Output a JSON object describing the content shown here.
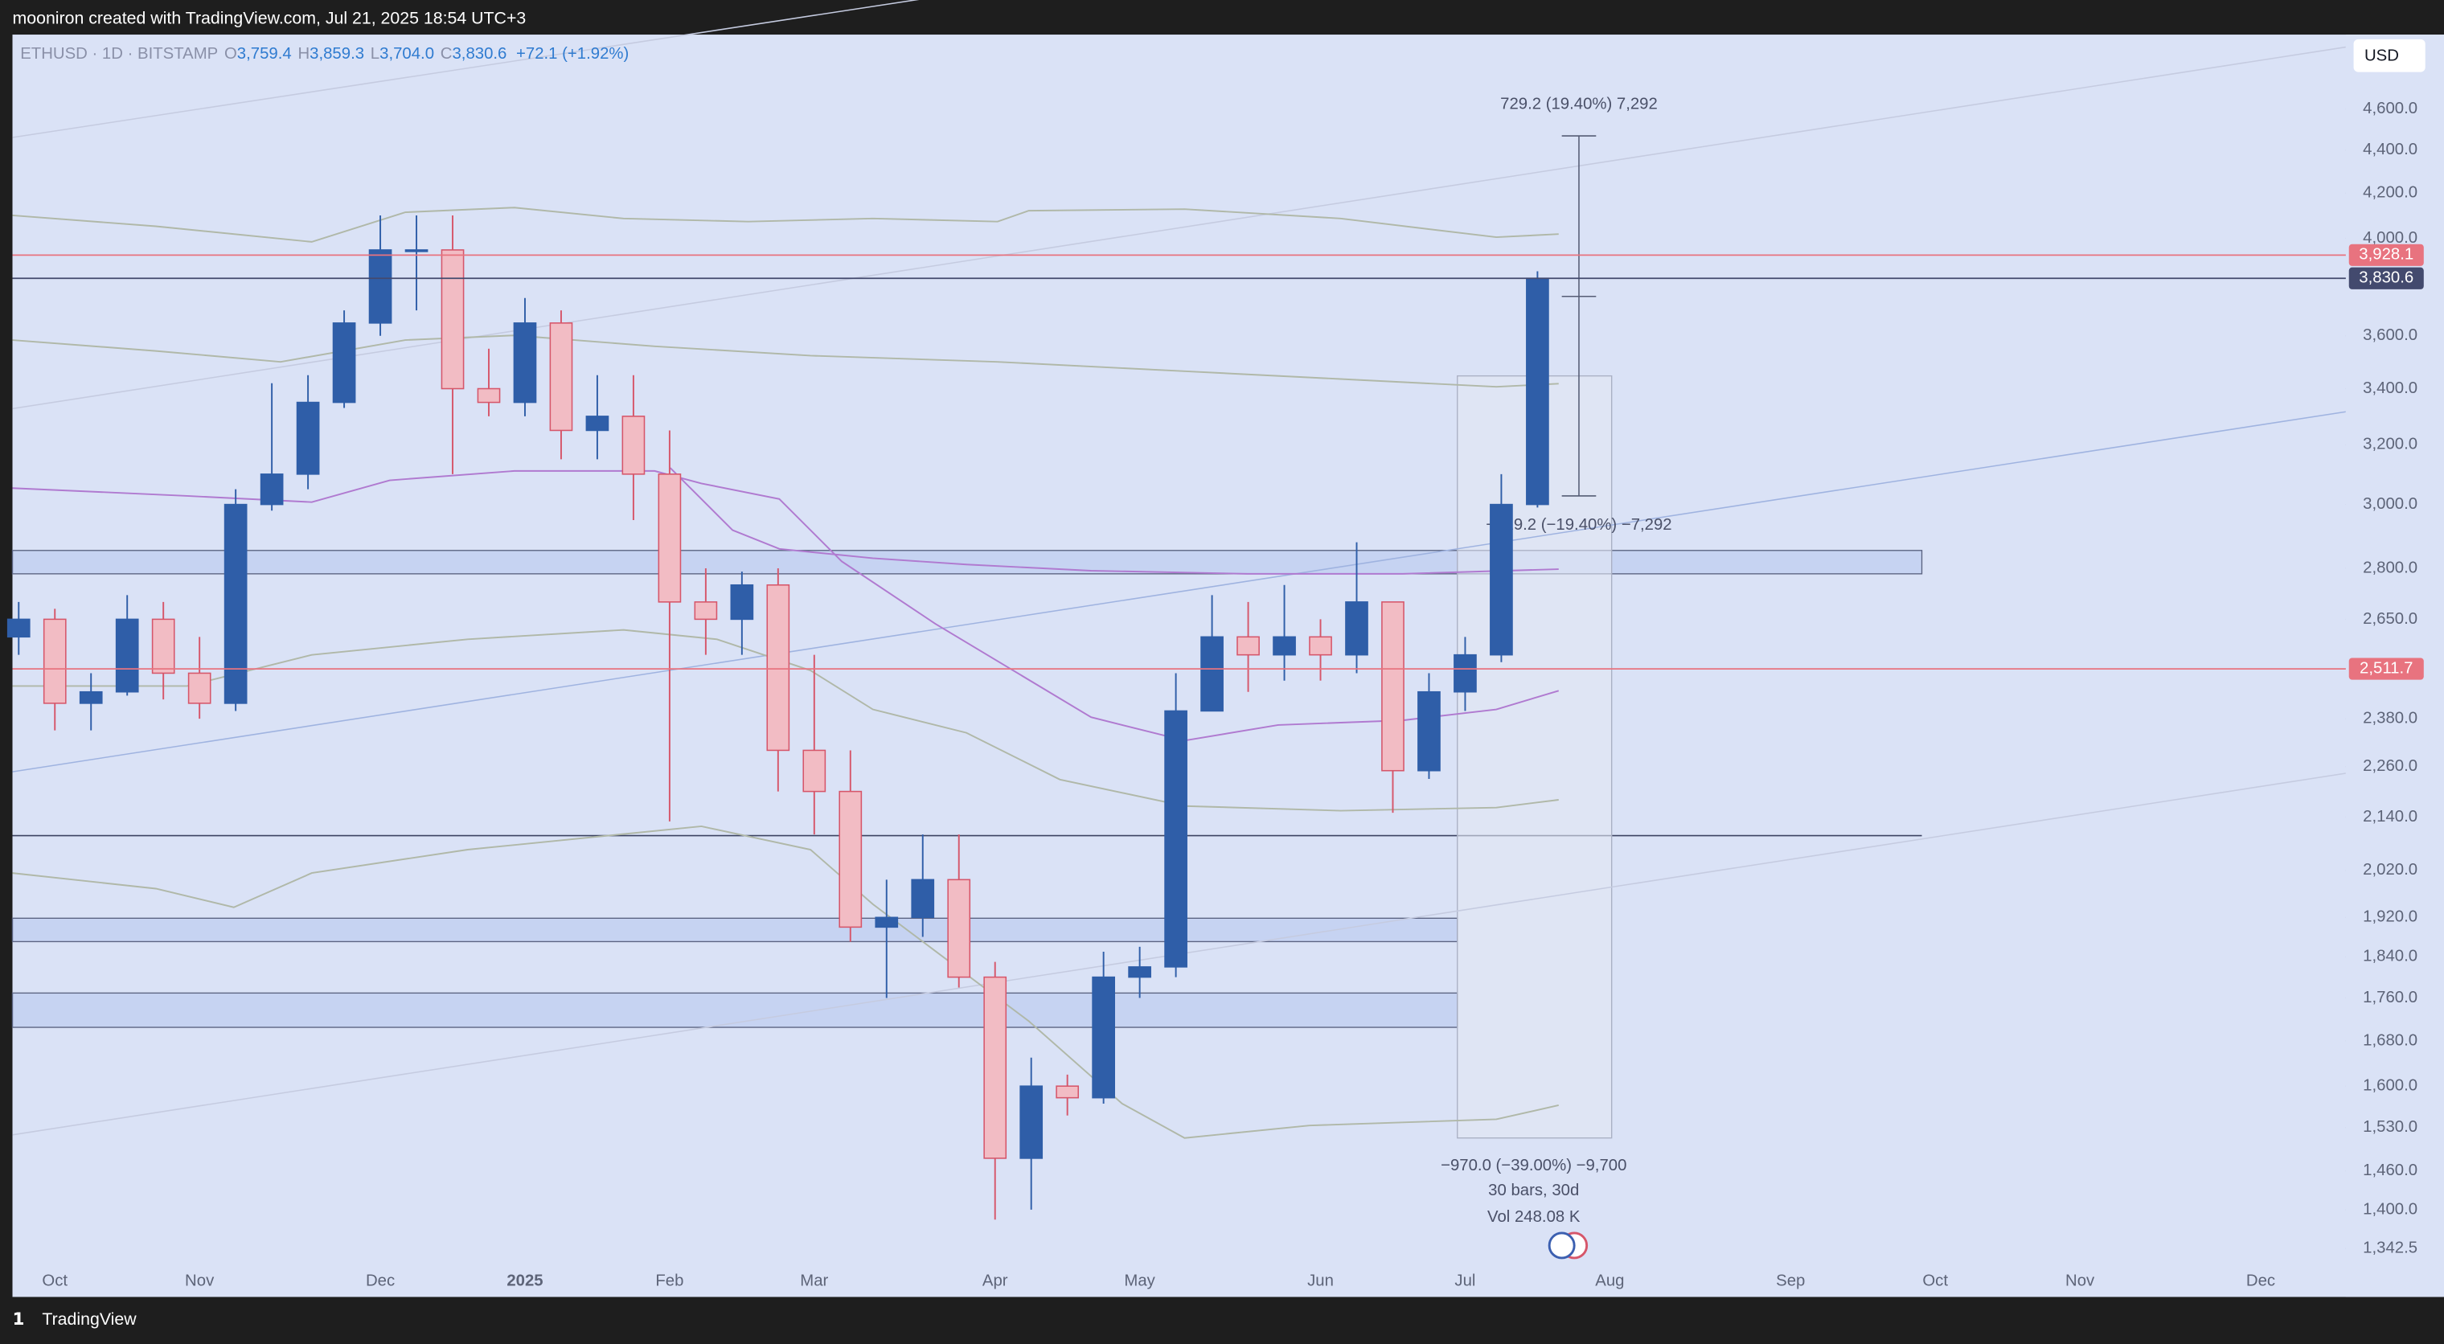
{
  "header": {
    "text": "mooniron created with TradingView.com, Jul 21, 2025 18:54 UTC+3"
  },
  "footer": {
    "brand": "TradingView"
  },
  "chart_data": {
    "type": "candlestick",
    "legend": {
      "symbol": "ETHUSD · 1D · BITSTAMP",
      "open_key": "O",
      "open": "3,759.4",
      "high_key": "H",
      "high": "3,859.3",
      "low_key": "L",
      "low": "3,704.0",
      "close_key": "C",
      "close": "3,830.6",
      "change": "+72.1 (+1.92%)"
    },
    "currency": "USD",
    "categories": [
      null,
      "Oct",
      null,
      null,
      null,
      "Nov",
      null,
      null,
      null,
      null,
      "Dec",
      null,
      null,
      null,
      "2025",
      null,
      null,
      null,
      "Feb",
      null,
      null,
      null,
      "Mar",
      null,
      null,
      null,
      null,
      "Apr",
      null,
      null,
      null,
      "May",
      null,
      null,
      null,
      null,
      "Jun",
      null,
      null,
      null,
      "Jul",
      null,
      null,
      null,
      "Aug",
      null,
      null,
      null,
      null,
      "Sep",
      null,
      null,
      null,
      "Oct",
      null,
      null,
      null,
      "Nov",
      null,
      null,
      null,
      null,
      "Dec",
      null
    ],
    "open": [
      2600,
      2650,
      2420,
      2450,
      2650,
      2500,
      2420,
      3000,
      3100,
      3350,
      3650,
      3950,
      3950,
      3400,
      3350,
      3650,
      3250,
      3300,
      3100,
      2700,
      2650,
      2750,
      2300,
      2200,
      1900,
      1920,
      2000,
      1800,
      1480,
      1600,
      1580,
      1800,
      1820,
      2400,
      2600,
      2550,
      2600,
      2550,
      2700,
      2250,
      2450,
      2550,
      3000,
      null,
      null,
      null,
      null,
      null,
      null,
      null,
      null,
      null,
      null,
      null,
      null,
      null,
      null,
      null,
      null,
      null,
      null,
      null,
      null,
      null
    ],
    "high": [
      2700,
      2680,
      2500,
      2720,
      2700,
      2600,
      3050,
      3420,
      3450,
      3700,
      4100,
      4100,
      4100,
      3550,
      3750,
      3700,
      3450,
      3450,
      3250,
      2800,
      2790,
      2800,
      2550,
      2300,
      2000,
      2100,
      2100,
      1830,
      1650,
      1620,
      1850,
      1860,
      2500,
      2720,
      2700,
      2750,
      2650,
      2880,
      2700,
      2500,
      2600,
      3100,
      3860,
      null,
      null,
      null,
      null,
      null,
      null,
      null,
      null,
      null,
      null,
      null,
      null,
      null,
      null,
      null,
      null,
      null,
      null,
      null,
      null,
      null
    ],
    "low": [
      2550,
      2350,
      2350,
      2440,
      2430,
      2380,
      2400,
      2980,
      3050,
      3330,
      3600,
      3700,
      3100,
      3300,
      3300,
      3150,
      3150,
      2950,
      2130,
      2550,
      2550,
      2200,
      2100,
      1870,
      1760,
      1880,
      1780,
      1385,
      1400,
      1550,
      1570,
      1760,
      1800,
      2400,
      2450,
      2480,
      2480,
      2500,
      2150,
      2230,
      2400,
      2530,
      2990,
      null,
      null,
      null,
      null,
      null,
      null,
      null,
      null,
      null,
      null,
      null,
      null,
      null,
      null,
      null,
      null,
      null,
      null,
      null,
      null,
      null
    ],
    "close": [
      2650,
      2420,
      2450,
      2650,
      2500,
      2420,
      3000,
      3100,
      3350,
      3650,
      3950,
      3950,
      3400,
      3350,
      3650,
      3250,
      3300,
      3100,
      2700,
      2650,
      2750,
      2300,
      2200,
      1900,
      1920,
      2000,
      1800,
      1480,
      1600,
      1580,
      1800,
      1820,
      2400,
      2600,
      2550,
      2600,
      2550,
      2700,
      2250,
      2450,
      2550,
      3000,
      3830.6,
      null,
      null,
      null,
      null,
      null,
      null,
      null,
      null,
      null,
      null,
      null,
      null,
      null,
      null,
      null,
      null,
      null,
      null,
      null,
      null,
      null
    ],
    "up_color": "#2f5ea8",
    "down_color": "#f2bcc4",
    "down_edge": "#d6566a",
    "log_scale": true,
    "ylim": [
      1274,
      4985
    ],
    "yticks": [
      {
        "value": 4600,
        "label": "4,600.0"
      },
      {
        "value": 4400,
        "label": "4,400.0"
      },
      {
        "value": 4200,
        "label": "4,200.0"
      },
      {
        "value": 4000,
        "label": "4,000.0"
      },
      {
        "value": 3600,
        "label": "3,600.0"
      },
      {
        "value": 3400,
        "label": "3,400.0"
      },
      {
        "value": 3200,
        "label": "3,200.0"
      },
      {
        "value": 3000,
        "label": "3,000.0"
      },
      {
        "value": 2800,
        "label": "2,800.0"
      },
      {
        "value": 2650,
        "label": "2,650.0"
      },
      {
        "value": 2380,
        "label": "2,380.0"
      },
      {
        "value": 2260,
        "label": "2,260.0"
      },
      {
        "value": 2140,
        "label": "2,140.0"
      },
      {
        "value": 2020,
        "label": "2,020.0"
      },
      {
        "value": 1920,
        "label": "1,920.0"
      },
      {
        "value": 1840,
        "label": "1,840.0"
      },
      {
        "value": 1760,
        "label": "1,760.0"
      },
      {
        "value": 1680,
        "label": "1,680.0"
      },
      {
        "value": 1600,
        "label": "1,600.0"
      },
      {
        "value": 1530,
        "label": "1,530.0"
      },
      {
        "value": 1460,
        "label": "1,460.0"
      },
      {
        "value": 1400,
        "label": "1,400.0"
      },
      {
        "value": 1342.5,
        "label": "1,342.5"
      }
    ],
    "price_lines": [
      {
        "value": 3928.1,
        "label": "3,928.1",
        "color": "#e8737f"
      },
      {
        "value": 3830.6,
        "label": "3,830.6",
        "color": "#434a6e"
      },
      {
        "value": 2511.7,
        "label": "2,511.7",
        "color": "#e8737f"
      }
    ],
    "annotations": [
      "729.2 (19.40%) 7,292",
      "−729.2 (−19.40%) −7,292",
      "−970.0 (−39.00%) −9,700",
      "30 bars, 30d",
      "Vol 248.08 K"
    ]
  }
}
